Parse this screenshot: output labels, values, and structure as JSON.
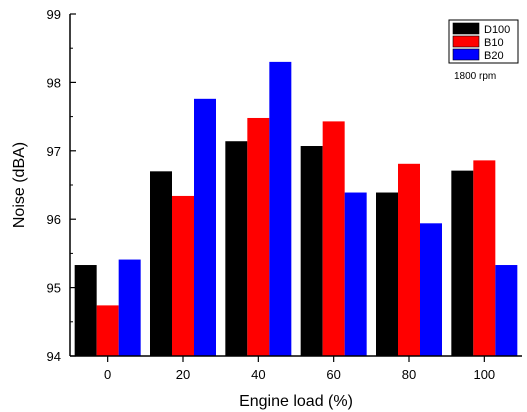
{
  "chart_data": {
    "type": "bar",
    "title": "",
    "xlabel": "Engine load (%)",
    "ylabel": "Noise (dBA)",
    "categories": [
      "0",
      "20",
      "40",
      "60",
      "80",
      "100"
    ],
    "ylim": [
      94,
      99
    ],
    "yticks": [
      "94",
      "95",
      "96",
      "97",
      "98",
      "99"
    ],
    "series": [
      {
        "name": "D100",
        "color": "#000000",
        "values": [
          95.33,
          96.7,
          97.14,
          97.07,
          96.39,
          96.71
        ]
      },
      {
        "name": "B10",
        "color": "#ff0000",
        "values": [
          94.74,
          96.34,
          97.48,
          97.43,
          96.81,
          96.86
        ]
      },
      {
        "name": "B20",
        "color": "#0000ff",
        "values": [
          95.41,
          97.76,
          98.3,
          96.39,
          95.94,
          95.33
        ]
      }
    ],
    "legend_position": "top-right",
    "annotation": "1800 rpm",
    "grid": false
  }
}
